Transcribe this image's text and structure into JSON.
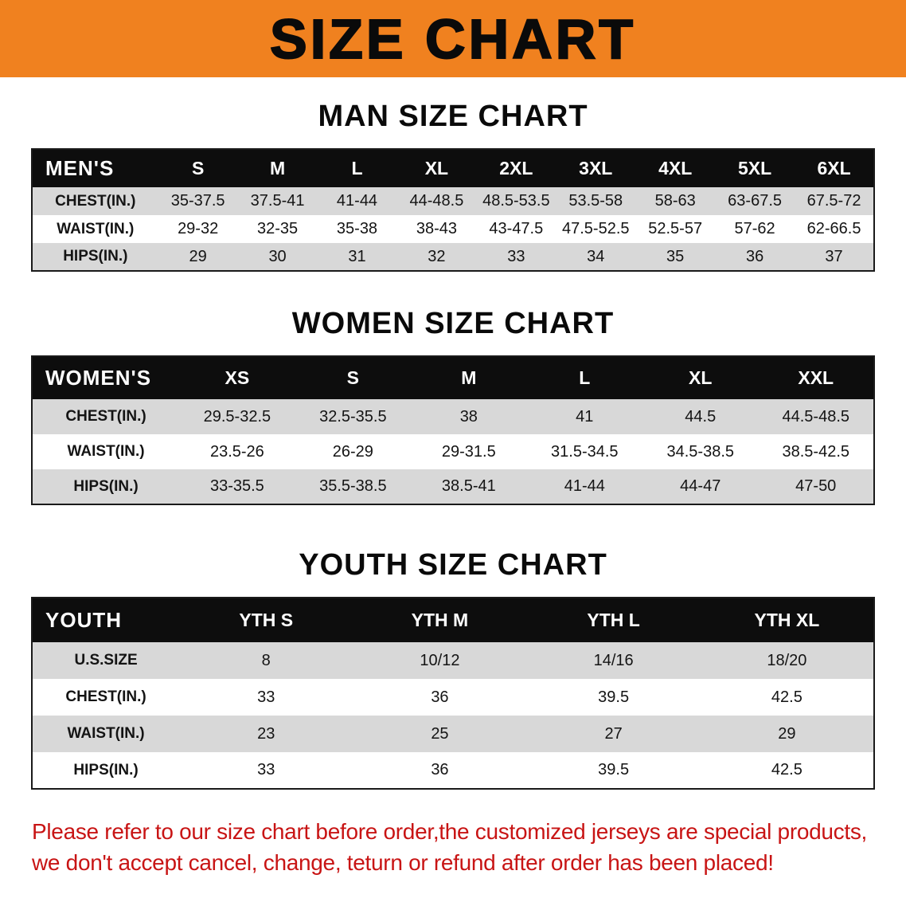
{
  "banner": {
    "title": "SIZE CHART"
  },
  "colors": {
    "banner_bg": "#f0811f",
    "table_header_bg": "#0d0d0d",
    "row_shade": "#d8d8d8",
    "note_red": "#c81414"
  },
  "chart_data": [
    {
      "type": "table",
      "title": "MAN SIZE CHART",
      "columns": [
        "MEN'S",
        "S",
        "M",
        "L",
        "XL",
        "2XL",
        "3XL",
        "4XL",
        "5XL",
        "6XL"
      ],
      "rows": [
        [
          "CHEST(IN.)",
          "35-37.5",
          "37.5-41",
          "41-44",
          "44-48.5",
          "48.5-53.5",
          "53.5-58",
          "58-63",
          "63-67.5",
          "67.5-72"
        ],
        [
          "WAIST(IN.)",
          "29-32",
          "32-35",
          "35-38",
          "38-43",
          "43-47.5",
          "47.5-52.5",
          "52.5-57",
          "57-62",
          "62-66.5"
        ],
        [
          "HIPS(IN.)",
          "29",
          "30",
          "31",
          "32",
          "33",
          "34",
          "35",
          "36",
          "37"
        ]
      ]
    },
    {
      "type": "table",
      "title": "WOMEN SIZE CHART",
      "columns": [
        "WOMEN'S",
        "XS",
        "S",
        "M",
        "L",
        "XL",
        "XXL"
      ],
      "rows": [
        [
          "CHEST(IN.)",
          "29.5-32.5",
          "32.5-35.5",
          "38",
          "41",
          "44.5",
          "44.5-48.5"
        ],
        [
          "WAIST(IN.)",
          "23.5-26",
          "26-29",
          "29-31.5",
          "31.5-34.5",
          "34.5-38.5",
          "38.5-42.5"
        ],
        [
          "HIPS(IN.)",
          "33-35.5",
          "35.5-38.5",
          "38.5-41",
          "41-44",
          "44-47",
          "47-50"
        ]
      ]
    },
    {
      "type": "table",
      "title": "YOUTH SIZE CHART",
      "columns": [
        "YOUTH",
        "YTH S",
        "YTH M",
        "YTH L",
        "YTH XL"
      ],
      "rows": [
        [
          "U.S.SIZE",
          "8",
          "10/12",
          "14/16",
          "18/20"
        ],
        [
          "CHEST(IN.)",
          "33",
          "36",
          "39.5",
          "42.5"
        ],
        [
          "WAIST(IN.)",
          "23",
          "25",
          "27",
          "29"
        ],
        [
          "HIPS(IN.)",
          "33",
          "36",
          "39.5",
          "42.5"
        ]
      ]
    }
  ],
  "footnote": {
    "line1": "Please refer to our size chart before order,the customized jerseys are special products,",
    "line2": "we don't accept cancel, change, teturn or refund after order has been placed!"
  }
}
